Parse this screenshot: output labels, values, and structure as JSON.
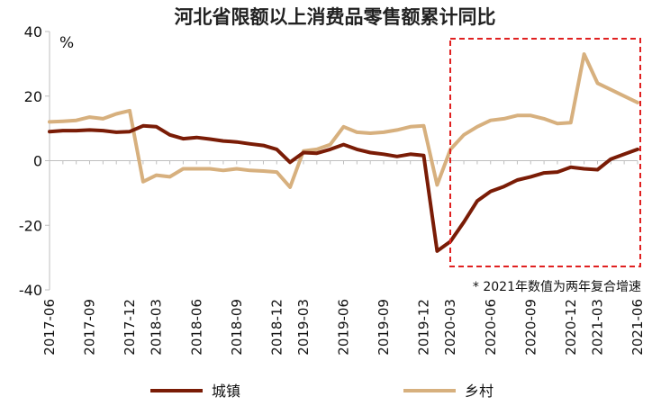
{
  "chart_data": {
    "type": "line",
    "title": "河北省限额以上消费品零售额累计同比",
    "ylabel": "%",
    "ylim": [
      -40,
      40
    ],
    "yticks": [
      40,
      20,
      0,
      -20,
      -40
    ],
    "grid": false,
    "legend_position": "bottom",
    "x": [
      "2017-06",
      "2017-07",
      "2017-08",
      "2017-09",
      "2017-10",
      "2017-11",
      "2017-12",
      "2018-02",
      "2018-03",
      "2018-04",
      "2018-05",
      "2018-06",
      "2018-07",
      "2018-08",
      "2018-09",
      "2018-10",
      "2018-11",
      "2018-12",
      "2019-02",
      "2019-03",
      "2019-04",
      "2019-05",
      "2019-06",
      "2019-07",
      "2019-08",
      "2019-09",
      "2019-10",
      "2019-11",
      "2019-12",
      "2020-02",
      "2020-03",
      "2020-04",
      "2020-05",
      "2020-06",
      "2020-07",
      "2020-08",
      "2020-09",
      "2020-10",
      "2020-11",
      "2020-12",
      "2021-02",
      "2021-03",
      "2021-04",
      "2021-05",
      "2021-06"
    ],
    "xtick_labels": [
      "2017-06",
      "2017-09",
      "2017-12",
      "2018-03",
      "2018-06",
      "2018-09",
      "2018-12",
      "2019-03",
      "2019-06",
      "2019-09",
      "2019-12",
      "2020-03",
      "2020-06",
      "2020-09",
      "2020-12",
      "2021-03",
      "2021-06"
    ],
    "series": [
      {
        "name": "城镇",
        "color": "#7a1c06",
        "values": [
          9.0,
          9.3,
          9.3,
          9.5,
          9.3,
          8.8,
          9.0,
          10.8,
          10.5,
          8.0,
          6.8,
          7.2,
          6.7,
          6.1,
          5.8,
          5.2,
          4.7,
          3.5,
          -0.5,
          2.5,
          2.3,
          3.5,
          5.0,
          3.5,
          2.5,
          2.0,
          1.3,
          2.0,
          1.6,
          -28.0,
          -25.0,
          -19.0,
          -12.5,
          -9.5,
          -8.0,
          -6.0,
          -5.0,
          -3.8,
          -3.5,
          -2.0,
          -2.5,
          -2.8,
          0.5,
          2.0,
          3.5
        ]
      },
      {
        "name": "乡村",
        "color": "#d7b07e",
        "values": [
          12.0,
          12.2,
          12.5,
          13.5,
          13.0,
          14.5,
          15.5,
          -6.5,
          -4.5,
          -5.0,
          -2.5,
          -2.5,
          -2.5,
          -3.0,
          -2.5,
          -3.0,
          -3.2,
          -3.5,
          -8.2,
          3.0,
          3.5,
          5.0,
          10.5,
          8.8,
          8.5,
          8.8,
          9.5,
          10.5,
          10.8,
          -7.5,
          3.5,
          8.0,
          10.5,
          12.5,
          13.0,
          14.0,
          14.0,
          13.0,
          11.5,
          11.8,
          33.0,
          24.0,
          22.0,
          20.0,
          18.0
        ]
      }
    ],
    "annotations": [
      {
        "text": "* 2021年数值为两年复合增速",
        "highlight": "dashed-box",
        "highlight_color": "#e02020"
      }
    ]
  }
}
